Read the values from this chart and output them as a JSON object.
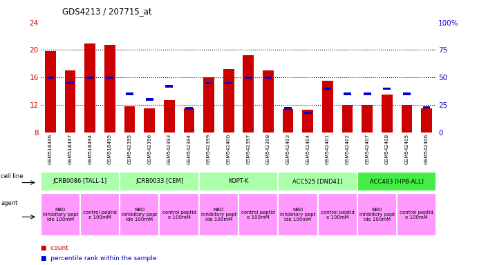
{
  "title": "GDS4213 / 207715_at",
  "samples": [
    "GSM518496",
    "GSM518497",
    "GSM518494",
    "GSM518495",
    "GSM542395",
    "GSM542396",
    "GSM542393",
    "GSM542394",
    "GSM542399",
    "GSM542400",
    "GSM542397",
    "GSM542398",
    "GSM542403",
    "GSM542404",
    "GSM542401",
    "GSM542402",
    "GSM542407",
    "GSM542408",
    "GSM542405",
    "GSM542406"
  ],
  "red_values": [
    19.8,
    17.0,
    21.0,
    20.8,
    11.8,
    11.5,
    12.7,
    11.5,
    16.0,
    17.2,
    19.2,
    17.0,
    11.4,
    11.3,
    15.5,
    12.0,
    12.0,
    13.5,
    12.0,
    11.5
  ],
  "blue_pct": [
    50,
    45,
    50,
    50,
    35,
    30,
    42,
    22,
    45,
    45,
    50,
    50,
    22,
    18,
    40,
    35,
    35,
    40,
    35,
    23
  ],
  "cell_lines": [
    {
      "label": "JCRB0086 [TALL-1]",
      "start": 0,
      "end": 3,
      "color": "#aaffaa"
    },
    {
      "label": "JCRB0033 [CEM]",
      "start": 4,
      "end": 7,
      "color": "#aaffaa"
    },
    {
      "label": "KOPT-K",
      "start": 8,
      "end": 11,
      "color": "#aaffaa"
    },
    {
      "label": "ACC525 [DND41]",
      "start": 12,
      "end": 15,
      "color": "#aaffaa"
    },
    {
      "label": "ACC483 [HPB-ALL]",
      "start": 16,
      "end": 19,
      "color": "#44ee44"
    }
  ],
  "agents": [
    {
      "label": "NBD\ninhibitory pept\nide 100mM",
      "start": 0,
      "end": 1,
      "color": "#ff99ff"
    },
    {
      "label": "control peptid\ne 100mM",
      "start": 2,
      "end": 3,
      "color": "#ff99ff"
    },
    {
      "label": "NBD\ninhibitory pept\nide 100mM",
      "start": 4,
      "end": 5,
      "color": "#ff99ff"
    },
    {
      "label": "control peptid\ne 100mM",
      "start": 6,
      "end": 7,
      "color": "#ff99ff"
    },
    {
      "label": "NBD\ninhibitory pept\nide 100mM",
      "start": 8,
      "end": 9,
      "color": "#ff99ff"
    },
    {
      "label": "control peptid\ne 100mM",
      "start": 10,
      "end": 11,
      "color": "#ff99ff"
    },
    {
      "label": "NBD\ninhibitory pept\nide 100mM",
      "start": 12,
      "end": 13,
      "color": "#ff99ff"
    },
    {
      "label": "control peptid\ne 100mM",
      "start": 14,
      "end": 15,
      "color": "#ff99ff"
    },
    {
      "label": "NBD\ninhibitory pept\nide 100mM",
      "start": 16,
      "end": 17,
      "color": "#ff99ff"
    },
    {
      "label": "control peptid\ne 100mM",
      "start": 18,
      "end": 19,
      "color": "#ff99ff"
    }
  ],
  "ylim_left": [
    8,
    24
  ],
  "yticks_left": [
    8,
    12,
    16,
    20,
    24
  ],
  "ylim_right": [
    0,
    100
  ],
  "yticks_right": [
    0,
    25,
    50,
    75,
    100
  ],
  "bar_color_red": "#cc0000",
  "bar_color_blue": "#0000cc",
  "bar_width": 0.55,
  "blue_bar_width": 0.38,
  "blue_bar_height": 0.35,
  "tick_label_color_left": "#cc0000",
  "tick_label_color_right": "#0000cc",
  "grid_yticks": [
    12,
    16,
    20
  ]
}
